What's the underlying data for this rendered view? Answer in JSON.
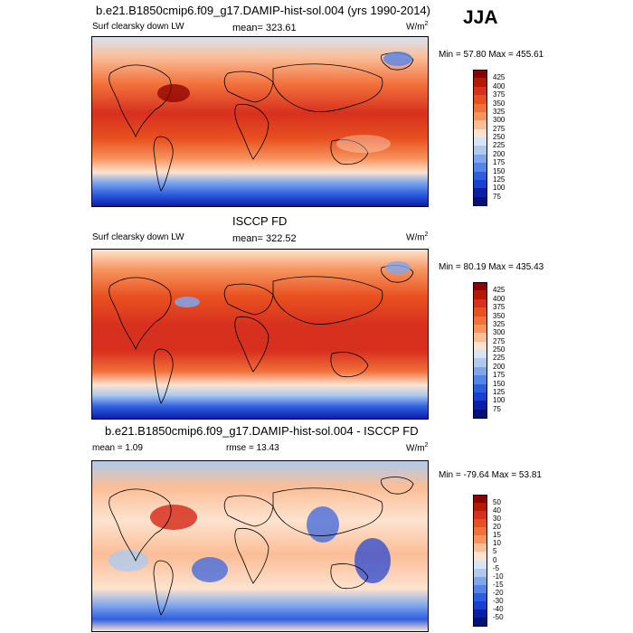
{
  "season": "JJA",
  "panels": [
    {
      "title": "b.e21.B1850cmip6.f09_g17.DAMIP-hist-sol.004 (yrs 1990-2014)",
      "left_label": "Surf clearsky down LW",
      "mean_label": "mean= 323.61",
      "units": "W/m",
      "units_sup": "2",
      "minmax": "Min = 57.80 Max = 455.61",
      "colorbar": {
        "levels": [
          "425",
          "400",
          "375",
          "350",
          "325",
          "300",
          "275",
          "250",
          "225",
          "200",
          "175",
          "150",
          "125",
          "100",
          "75"
        ],
        "colors": [
          "#8b0000",
          "#b51a00",
          "#d7301f",
          "#e8501f",
          "#f2703a",
          "#f7945e",
          "#fbbd96",
          "#fde3cf",
          "#d6e4f3",
          "#aecbef",
          "#7fa6ec",
          "#5584e8",
          "#2e5ee0",
          "#1a3fd4",
          "#0a1fa8",
          "#00107a"
        ]
      }
    },
    {
      "title": "ISCCP FD",
      "left_label": "Surf clearsky down LW",
      "mean_label": "mean= 322.52",
      "units": "W/m",
      "units_sup": "2",
      "minmax": "Min = 80.19 Max = 435.43",
      "colorbar": {
        "levels": [
          "425",
          "400",
          "375",
          "350",
          "325",
          "300",
          "275",
          "250",
          "225",
          "200",
          "175",
          "150",
          "125",
          "100",
          "75"
        ],
        "colors": [
          "#8b0000",
          "#b51a00",
          "#d7301f",
          "#e8501f",
          "#f2703a",
          "#f7945e",
          "#fbbd96",
          "#fde3cf",
          "#d6e4f3",
          "#aecbef",
          "#7fa6ec",
          "#5584e8",
          "#2e5ee0",
          "#1a3fd4",
          "#0a1fa8",
          "#00107a"
        ]
      }
    },
    {
      "title": "b.e21.B1850cmip6.f09_g17.DAMIP-hist-sol.004 - ISCCP FD",
      "left_label": "mean =   1.09",
      "mean_label": "rmse =  13.43",
      "units": "W/m",
      "units_sup": "2",
      "minmax": "Min = -79.64 Max = 53.81",
      "colorbar": {
        "levels": [
          "50",
          "40",
          "30",
          "20",
          "15",
          "10",
          "5",
          "0",
          "-5",
          "-10",
          "-15",
          "-20",
          "-30",
          "-40",
          "-50"
        ],
        "colors": [
          "#8b0000",
          "#b51a00",
          "#d7301f",
          "#e8501f",
          "#f2703a",
          "#f7945e",
          "#fbbd96",
          "#fde3cf",
          "#d6e4f3",
          "#aecbef",
          "#7fa6ec",
          "#5584e8",
          "#2e5ee0",
          "#1a3fd4",
          "#0a1fa8",
          "#00107a"
        ]
      }
    }
  ]
}
